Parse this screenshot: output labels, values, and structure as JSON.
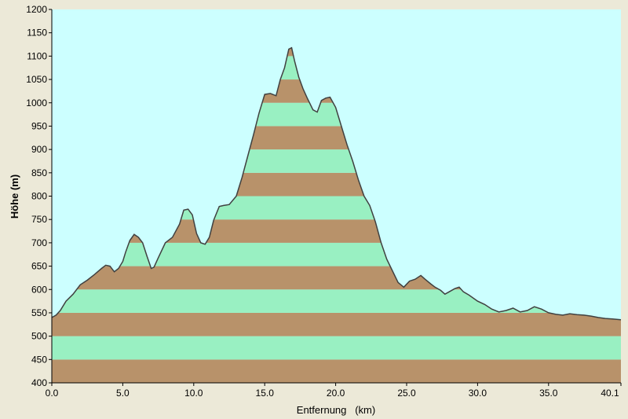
{
  "colors": {
    "background": "#ece9d8",
    "plot_background": "#ccffff",
    "band_brown": "#b8926a",
    "band_green": "#99f0c2",
    "profile_line": "#404040",
    "axis": "#000000"
  },
  "chart_data": {
    "type": "area",
    "title": "",
    "xlabel": "Entfernung   (km)",
    "ylabel": "Höhe (m)",
    "xlim": [
      0,
      40.1
    ],
    "ylim": [
      400,
      1200
    ],
    "band_height_m": 50,
    "x_ticks": [
      "0.0",
      "5.0",
      "10.0",
      "15.0",
      "20.0",
      "25.0",
      "30.0",
      "35.0",
      "40.1"
    ],
    "x_tick_values": [
      0,
      5,
      10,
      15,
      20,
      25,
      30,
      35,
      40.1
    ],
    "y_ticks": [
      "400",
      "450",
      "500",
      "550",
      "600",
      "650",
      "700",
      "750",
      "800",
      "850",
      "900",
      "950",
      "1000",
      "1050",
      "1100",
      "1150",
      "1200"
    ],
    "y_tick_values": [
      400,
      450,
      500,
      550,
      600,
      650,
      700,
      750,
      800,
      850,
      900,
      950,
      1000,
      1050,
      1100,
      1150,
      1200
    ],
    "series": [
      {
        "x": [
          0,
          0.3,
          0.6,
          1.0,
          1.5,
          2.0,
          2.5,
          3.0,
          3.5,
          3.8,
          4.1,
          4.4,
          4.7,
          5.0,
          5.2,
          5.5,
          5.8,
          6.1,
          6.4,
          6.7,
          7.0,
          7.2,
          7.5,
          8.0,
          8.5,
          9.0,
          9.3,
          9.6,
          9.9,
          10.2,
          10.5,
          10.8,
          11.1,
          11.4,
          11.8,
          12.1,
          12.5,
          13.0,
          13.4,
          13.8,
          14.2,
          14.6,
          15.0,
          15.4,
          15.8,
          16.1,
          16.4,
          16.7,
          16.9,
          17.1,
          17.4,
          17.7,
          18.0,
          18.4,
          18.7,
          19.0,
          19.3,
          19.6,
          20.0,
          20.4,
          20.8,
          21.2,
          21.6,
          22.0,
          22.4,
          22.8,
          23.2,
          23.6,
          24.0,
          24.4,
          24.8,
          25.2,
          25.6,
          26.0,
          26.3,
          26.7,
          27.0,
          27.4,
          27.7,
          28.0,
          28.4,
          28.7,
          29.0,
          29.4,
          30.0,
          30.5,
          31.0,
          31.5,
          32.0,
          32.5,
          33.0,
          33.5,
          34.0,
          34.5,
          35.0,
          35.5,
          36.0,
          36.5,
          37.0,
          37.5,
          38.0,
          38.5,
          39.0,
          39.5,
          40.1
        ],
        "y": [
          540,
          545,
          555,
          575,
          590,
          610,
          620,
          632,
          645,
          652,
          650,
          638,
          645,
          660,
          680,
          705,
          718,
          712,
          700,
          672,
          645,
          648,
          668,
          700,
          712,
          740,
          770,
          772,
          760,
          720,
          700,
          697,
          712,
          748,
          778,
          780,
          782,
          800,
          840,
          885,
          930,
          978,
          1018,
          1020,
          1015,
          1050,
          1075,
          1115,
          1118,
          1090,
          1055,
          1030,
          1010,
          985,
          980,
          1005,
          1010,
          1012,
          990,
          950,
          910,
          875,
          835,
          800,
          780,
          745,
          700,
          665,
          640,
          615,
          605,
          618,
          622,
          630,
          622,
          612,
          605,
          598,
          590,
          595,
          602,
          605,
          595,
          588,
          575,
          568,
          558,
          552,
          555,
          560,
          552,
          555,
          563,
          558,
          550,
          547,
          545,
          548,
          546,
          545,
          543,
          540,
          538,
          537,
          535
        ]
      }
    ]
  }
}
